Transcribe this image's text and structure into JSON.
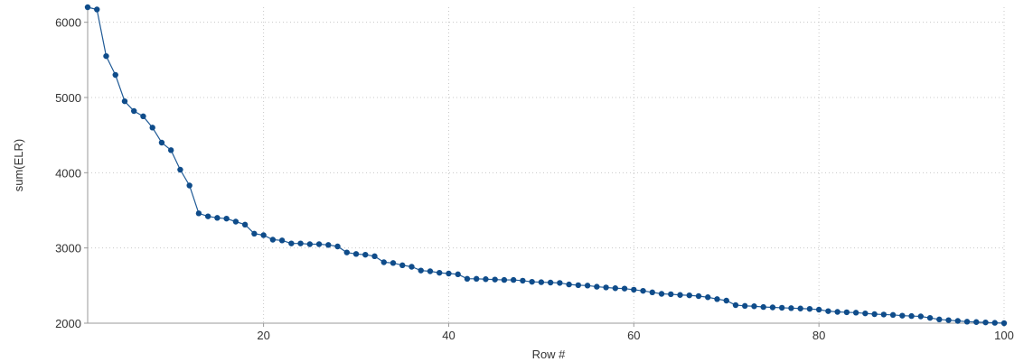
{
  "chart_data": {
    "type": "line",
    "xlabel": "Row #",
    "ylabel": "sum(ELR)",
    "xlim": [
      1,
      100
    ],
    "ylim": [
      2000,
      6200
    ],
    "xticks": [
      20,
      40,
      60,
      80,
      100
    ],
    "yticks": [
      2000,
      3000,
      4000,
      5000,
      6000
    ],
    "grid": true,
    "colors": {
      "series": "#1f5a96",
      "marker": "#0f4c8a"
    },
    "x": [
      1,
      2,
      3,
      4,
      5,
      6,
      7,
      8,
      9,
      10,
      11,
      12,
      13,
      14,
      15,
      16,
      17,
      18,
      19,
      20,
      21,
      22,
      23,
      24,
      25,
      26,
      27,
      28,
      29,
      30,
      31,
      32,
      33,
      34,
      35,
      36,
      37,
      38,
      39,
      40,
      41,
      42,
      43,
      44,
      45,
      46,
      47,
      48,
      49,
      50,
      51,
      52,
      53,
      54,
      55,
      56,
      57,
      58,
      59,
      60,
      61,
      62,
      63,
      64,
      65,
      66,
      67,
      68,
      69,
      70,
      71,
      72,
      73,
      74,
      75,
      76,
      77,
      78,
      79,
      80,
      81,
      82,
      83,
      84,
      85,
      86,
      87,
      88,
      89,
      90,
      91,
      92,
      93,
      94,
      95,
      96,
      97,
      98,
      99,
      100
    ],
    "series": [
      {
        "values": [
          6200,
          6170,
          5550,
          5300,
          4950,
          4820,
          4750,
          4600,
          4400,
          4300,
          4040,
          3830,
          3460,
          3420,
          3400,
          3390,
          3350,
          3310,
          3190,
          3170,
          3110,
          3100,
          3060,
          3060,
          3050,
          3050,
          3040,
          3020,
          2940,
          2920,
          2910,
          2890,
          2810,
          2800,
          2770,
          2750,
          2700,
          2690,
          2670,
          2660,
          2650,
          2590,
          2590,
          2585,
          2580,
          2575,
          2575,
          2565,
          2550,
          2545,
          2540,
          2535,
          2515,
          2505,
          2500,
          2485,
          2475,
          2465,
          2460,
          2445,
          2430,
          2410,
          2390,
          2385,
          2375,
          2370,
          2360,
          2345,
          2320,
          2300,
          2240,
          2230,
          2225,
          2215,
          2210,
          2205,
          2200,
          2195,
          2190,
          2180,
          2160,
          2150,
          2145,
          2140,
          2130,
          2120,
          2115,
          2110,
          2100,
          2095,
          2090,
          2070,
          2050,
          2040,
          2030,
          2020,
          2015,
          2010,
          2005,
          2000
        ]
      }
    ]
  }
}
